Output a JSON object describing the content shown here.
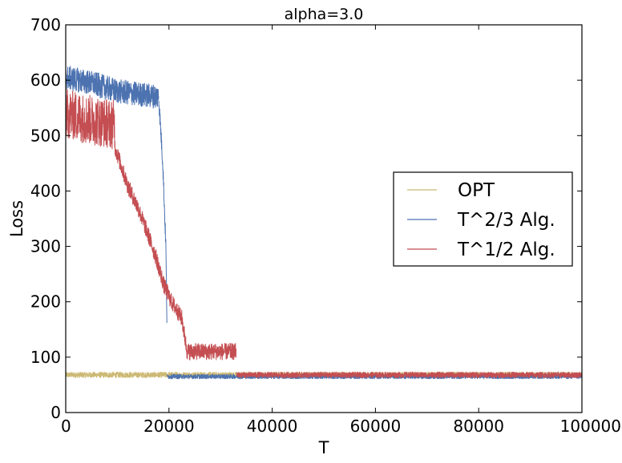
{
  "chart_data": {
    "type": "line",
    "title": "alpha=3.0",
    "xlabel": "T",
    "ylabel": "Loss",
    "xlim": [
      0,
      100000
    ],
    "ylim": [
      0,
      700
    ],
    "xticks": [
      0,
      20000,
      40000,
      60000,
      80000,
      100000
    ],
    "yticks": [
      0,
      100,
      200,
      300,
      400,
      500,
      600,
      700
    ],
    "grid": false,
    "legend_position": "center-right",
    "series": [
      {
        "name": "OPT",
        "color": "#ccb974",
        "segments": [
          {
            "x": [
              0,
              100000
            ],
            "y": [
              68,
              68
            ],
            "noise": 5
          }
        ]
      },
      {
        "name": "T^2/3 Alg.",
        "color": "#4c72b0",
        "segments": [
          {
            "x": [
              0,
              5000,
              10000,
              18000
            ],
            "y": [
              605,
              595,
              580,
              570
            ],
            "noise": 22
          },
          {
            "x": [
              18000,
              18800,
              19400,
              19600
            ],
            "y": [
              570,
              450,
              300,
              170
            ],
            "noise": 15
          },
          {
            "x": [
              19700,
              100000
            ],
            "y": [
              65,
              65
            ],
            "noise": 4
          }
        ]
      },
      {
        "name": "T^1/2 Alg.",
        "color": "#c44e52",
        "segments": [
          {
            "x": [
              0,
              4000,
              9500
            ],
            "y": [
              540,
              530,
              520
            ],
            "noise": 45
          },
          {
            "x": [
              9500,
              12000,
              14000,
              16000,
              17500,
              19000,
              20500,
              22500,
              23500,
              33000
            ],
            "y": [
              480,
              410,
              370,
              320,
              280,
              230,
              200,
              170,
              110,
              110
            ],
            "noise": 15
          },
          {
            "x": [
              33100,
              100000
            ],
            "y": [
              68,
              68
            ],
            "noise": 5
          }
        ]
      }
    ]
  }
}
